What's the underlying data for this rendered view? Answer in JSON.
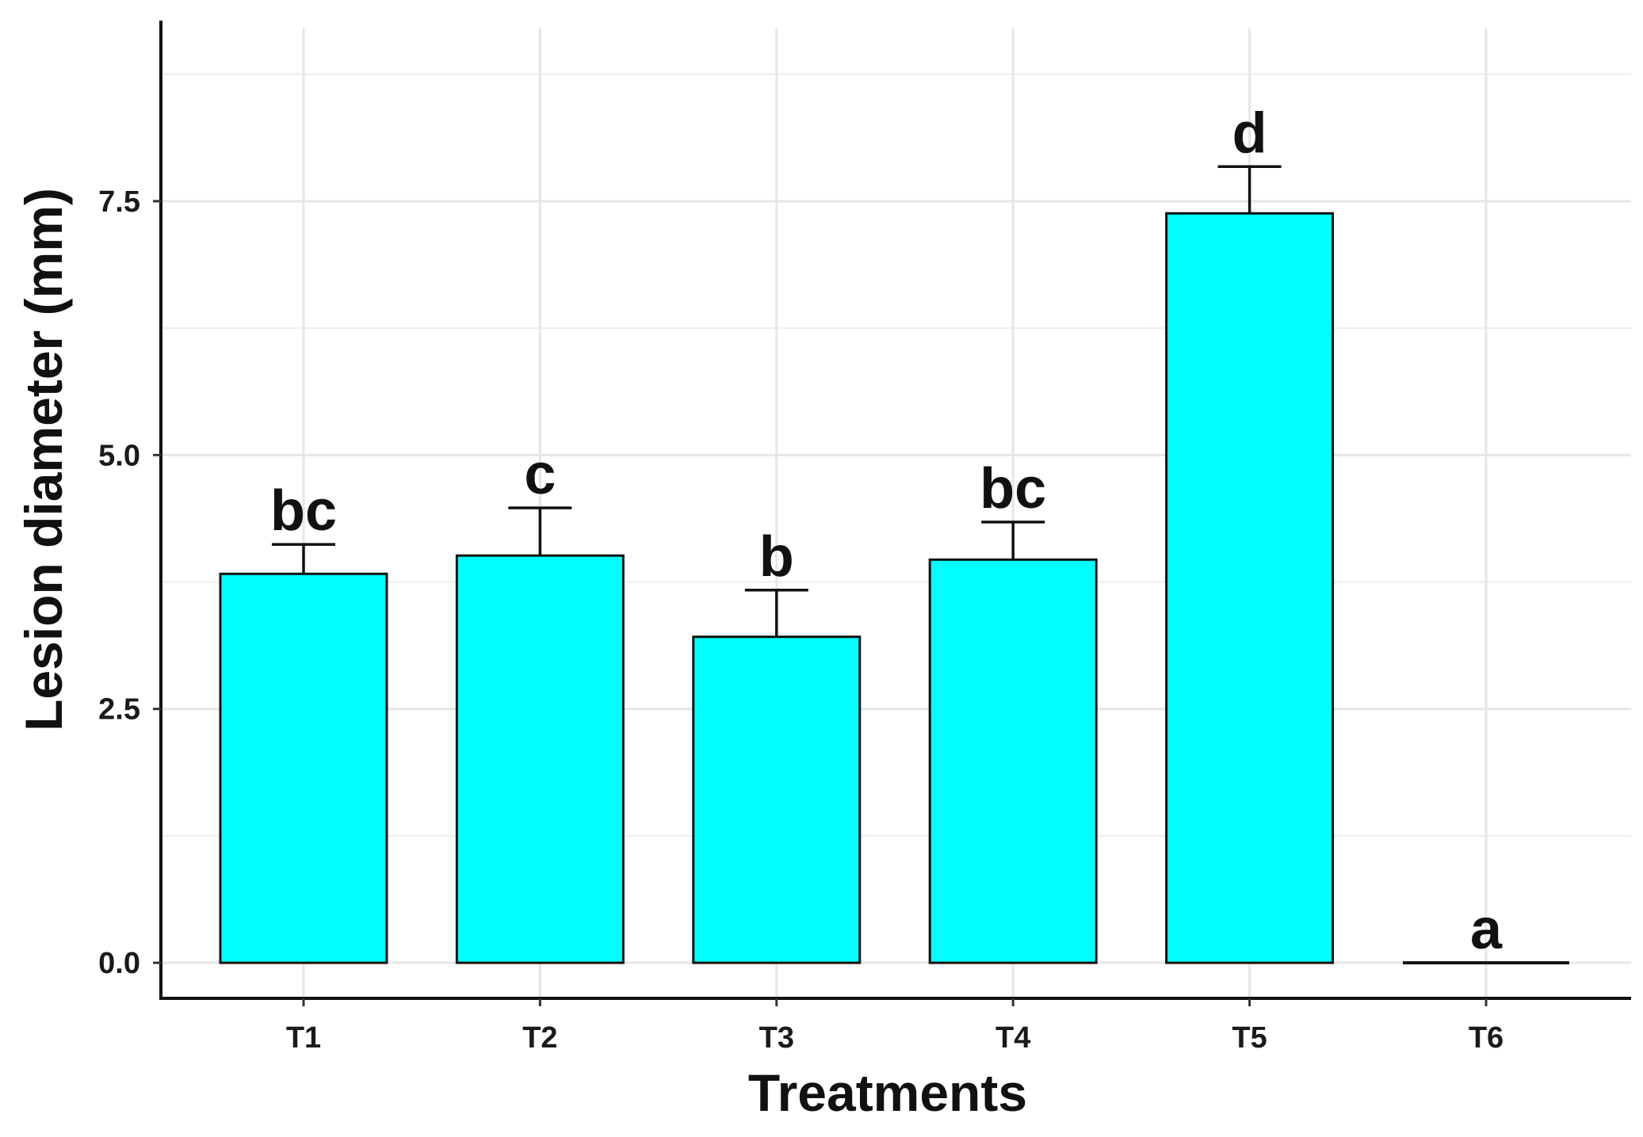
{
  "chart_data": {
    "type": "bar",
    "title": "",
    "xlabel": "Treatments",
    "ylabel": "Lesion diameter (mm)",
    "categories": [
      "T1",
      "T2",
      "T3",
      "T4",
      "T5",
      "T6"
    ],
    "values": [
      3.83,
      4.01,
      3.21,
      3.97,
      7.38,
      0.0
    ],
    "error_upper": [
      4.12,
      4.48,
      3.67,
      4.34,
      7.84,
      0.0
    ],
    "significance_letters": [
      "bc",
      "c",
      "b",
      "bc",
      "d",
      "a"
    ],
    "ylim": [
      -0.35,
      9.2
    ],
    "y_ticks": [
      0.0,
      2.5,
      5.0,
      7.5
    ],
    "y_tick_labels": [
      "0.0",
      "2.5",
      "5.0",
      "7.5"
    ],
    "grid": true,
    "bar_color": "#00ffff",
    "edge_color": "#111111"
  }
}
